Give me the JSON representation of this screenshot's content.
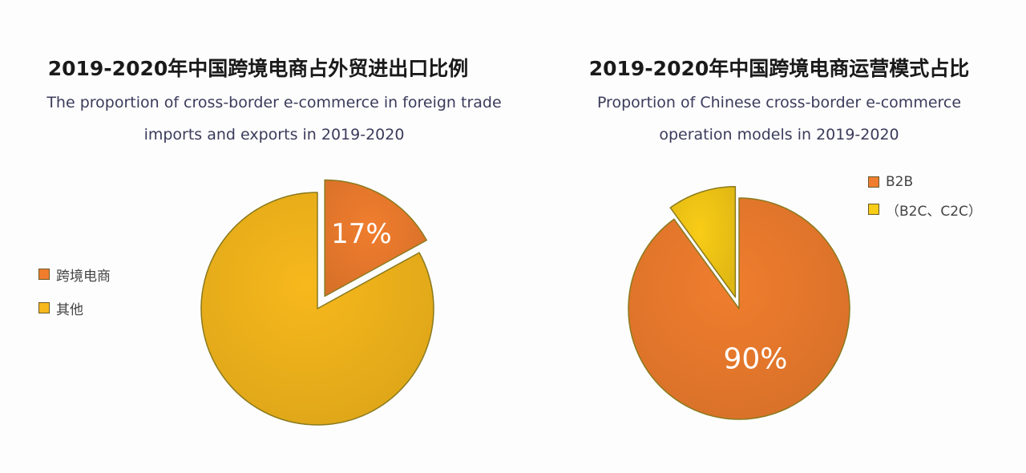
{
  "chart_data": [
    {
      "type": "pie",
      "title": "2019-2020年中国跨境电商占外贸进出口比例",
      "subtitle_lines": [
        "The proportion of cross-border e-commerce in foreign trade",
        "imports and exports in 2019-2020"
      ],
      "categories": [
        "跨境电商",
        "其他"
      ],
      "values": [
        17,
        83
      ],
      "data_labels": [
        "17%",
        ""
      ],
      "colors": [
        "#f07d2e",
        "#f7b81c"
      ],
      "exploded": "跨境电商",
      "legend_position": "left"
    },
    {
      "type": "pie",
      "title": "2019-2020年中国跨境电商运营模式占比",
      "subtitle_lines": [
        "Proportion of Chinese cross-border e-commerce",
        "operation models in 2019-2020"
      ],
      "categories": [
        "B2B",
        "（B2C、C2C）"
      ],
      "values": [
        90,
        10
      ],
      "data_labels": [
        "90%",
        ""
      ],
      "colors": [
        "#f07d2e",
        "#f9cc16"
      ],
      "exploded": "（B2C、C2C）",
      "legend_position": "top-right"
    }
  ]
}
